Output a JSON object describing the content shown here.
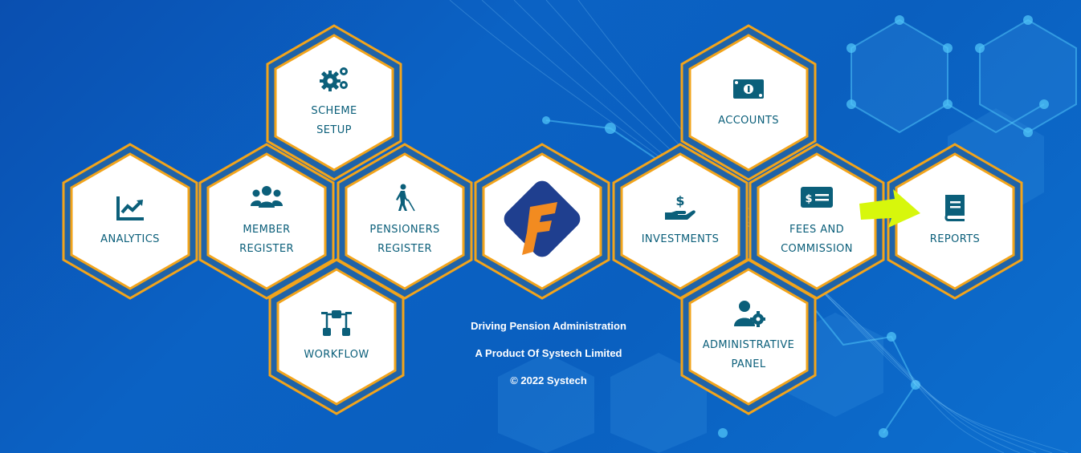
{
  "tiles": {
    "scheme_setup": {
      "label": "SCHEME\nSETUP",
      "icon": "gears-icon"
    },
    "accounts": {
      "label": "ACCOUNTS",
      "icon": "money-bill-icon"
    },
    "analytics": {
      "label": "ANALYTICS",
      "icon": "chart-line-icon"
    },
    "member_register": {
      "label": "MEMBER\nREGISTER",
      "icon": "users-icon"
    },
    "pensioners_register": {
      "label": "PENSIONERS\nREGISTER",
      "icon": "person-cane-icon"
    },
    "logo": {
      "icon": "systech-logo-icon"
    },
    "investments": {
      "label": "INVESTMENTS",
      "icon": "hand-dollar-icon"
    },
    "fees_commission": {
      "label": "FEES AND\nCOMMISSION",
      "icon": "cheque-icon"
    },
    "reports": {
      "label": "REPORTS",
      "icon": "book-icon"
    },
    "workflow": {
      "label": "WORKFLOW",
      "icon": "flow-nodes-icon"
    },
    "administrative_panel": {
      "label": "ADMINISTRATIVE\nPANEL",
      "icon": "user-gear-icon"
    }
  },
  "footer": {
    "tagline": "Driving Pension Administration",
    "product": "A Product Of Systech Limited",
    "copyright": "© 2022 Systech"
  },
  "colors": {
    "tile_border": "#f2a41b",
    "tile_inner_ring": "#1f63a8",
    "tile_fill": "#ffffff",
    "icon_teal": "#0b5f7a",
    "arrow": "#d7f70c",
    "logo_orange": "#f28b20",
    "logo_navy": "#1f3f8f"
  }
}
